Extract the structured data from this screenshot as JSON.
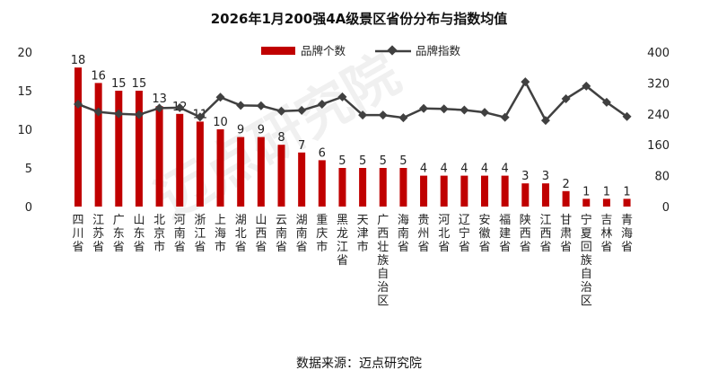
{
  "chart_data": {
    "type": "bar+line",
    "title": "2026年1月200强4A级景区省份分布与指数均值",
    "source": "数据来源：迈点研究院",
    "watermark": "迈点研究院",
    "categories": [
      "四川省",
      "江苏省",
      "广东省",
      "山东省",
      "北京市",
      "河南省",
      "浙江省",
      "上海市",
      "湖北省",
      "山西省",
      "云南省",
      "湖南省",
      "重庆市",
      "黑龙江省",
      "天津市",
      "广西壮族自治区",
      "海南省",
      "贵州省",
      "河北省",
      "辽宁省",
      "安徽省",
      "福建省",
      "陕西省",
      "江西省",
      "甘肃省",
      "宁夏回族自治区",
      "吉林省",
      "青海省"
    ],
    "series": [
      {
        "name": "品牌个数",
        "type": "bar",
        "axis": "left",
        "color": "#C00000",
        "values": [
          18,
          16,
          15,
          15,
          13,
          12,
          11,
          10,
          9,
          9,
          8,
          7,
          6,
          5,
          5,
          5,
          5,
          4,
          4,
          4,
          4,
          4,
          3,
          3,
          2,
          1,
          1,
          1
        ]
      },
      {
        "name": "品牌指数",
        "type": "line",
        "axis": "right",
        "color": "#404040",
        "values": [
          265,
          245,
          240,
          238,
          255,
          256,
          232,
          283,
          262,
          261,
          247,
          249,
          265,
          284,
          237,
          237,
          230,
          254,
          253,
          250,
          244,
          231,
          323,
          223,
          279,
          312,
          270,
          233
        ]
      }
    ],
    "y_left": {
      "min": 0,
      "max": 20,
      "ticks": [
        0,
        5,
        10,
        15,
        20
      ]
    },
    "y_right": {
      "min": 0,
      "max": 400,
      "ticks": [
        0,
        80,
        160,
        240,
        320,
        400
      ]
    }
  }
}
